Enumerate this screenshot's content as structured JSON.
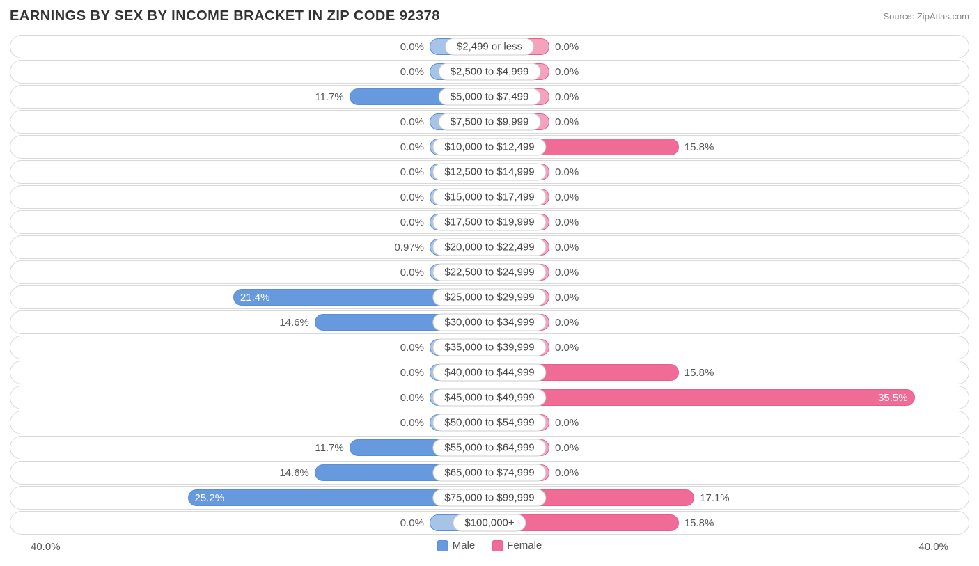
{
  "title": "EARNINGS BY SEX BY INCOME BRACKET IN ZIP CODE 92378",
  "source": "Source: ZipAtlas.com",
  "axis_max": 40.0,
  "axis_max_label": "40.0%",
  "min_bar_pct": 5.0,
  "colors": {
    "male_fill": "#6699dd",
    "male_fill_light": "#a8c3e8",
    "male_border": "#5a8fd6",
    "female_fill": "#f06b95",
    "female_fill_light": "#f5a3bd",
    "female_border": "#e85d8a",
    "row_border": "#d8d8d8",
    "text": "#555555",
    "title_color": "#333333",
    "source_color": "#888888",
    "background": "#ffffff"
  },
  "legend": {
    "male": "Male",
    "female": "Female"
  },
  "rows": [
    {
      "category": "$2,499 or less",
      "male": 0.0,
      "female": 0.0
    },
    {
      "category": "$2,500 to $4,999",
      "male": 0.0,
      "female": 0.0
    },
    {
      "category": "$5,000 to $7,499",
      "male": 11.7,
      "female": 0.0
    },
    {
      "category": "$7,500 to $9,999",
      "male": 0.0,
      "female": 0.0
    },
    {
      "category": "$10,000 to $12,499",
      "male": 0.0,
      "female": 15.8
    },
    {
      "category": "$12,500 to $14,999",
      "male": 0.0,
      "female": 0.0
    },
    {
      "category": "$15,000 to $17,499",
      "male": 0.0,
      "female": 0.0
    },
    {
      "category": "$17,500 to $19,999",
      "male": 0.0,
      "female": 0.0
    },
    {
      "category": "$20,000 to $22,499",
      "male": 0.97,
      "female": 0.0
    },
    {
      "category": "$22,500 to $24,999",
      "male": 0.0,
      "female": 0.0
    },
    {
      "category": "$25,000 to $29,999",
      "male": 21.4,
      "female": 0.0
    },
    {
      "category": "$30,000 to $34,999",
      "male": 14.6,
      "female": 0.0
    },
    {
      "category": "$35,000 to $39,999",
      "male": 0.0,
      "female": 0.0
    },
    {
      "category": "$40,000 to $44,999",
      "male": 0.0,
      "female": 15.8
    },
    {
      "category": "$45,000 to $49,999",
      "male": 0.0,
      "female": 35.5
    },
    {
      "category": "$50,000 to $54,999",
      "male": 0.0,
      "female": 0.0
    },
    {
      "category": "$55,000 to $64,999",
      "male": 11.7,
      "female": 0.0
    },
    {
      "category": "$65,000 to $74,999",
      "male": 14.6,
      "female": 0.0
    },
    {
      "category": "$75,000 to $99,999",
      "male": 25.2,
      "female": 17.1
    },
    {
      "category": "$100,000+",
      "male": 0.0,
      "female": 15.8
    }
  ]
}
